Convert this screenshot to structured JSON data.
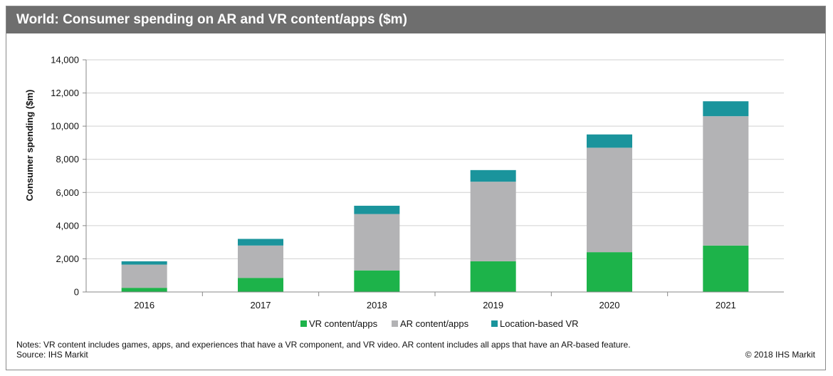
{
  "title": "World: Consumer spending on AR and VR content/apps ($m)",
  "notes": "Notes: VR content includes games, apps, and experiences that have a VR component, and VR video. AR content includes all apps that have an AR-based feature.",
  "source": "Source: IHS Markit",
  "copyright": "© 2018 IHS Markit",
  "chart_data": {
    "type": "bar",
    "stacked": true,
    "title": "World: Consumer spending on AR and VR content/apps ($m)",
    "xlabel": "",
    "ylabel": "Consumer spending ($m)",
    "ylim": [
      0,
      14000
    ],
    "yticks": [
      0,
      2000,
      4000,
      6000,
      8000,
      10000,
      12000,
      14000
    ],
    "ytick_labels": [
      "0",
      "2,000",
      "4,000",
      "6,000",
      "8,000",
      "10,000",
      "12,000",
      "14,000"
    ],
    "grid": true,
    "legend_position": "bottom",
    "categories": [
      "2016",
      "2017",
      "2018",
      "2019",
      "2020",
      "2021"
    ],
    "series": [
      {
        "name": "VR content/apps",
        "color": "#1db34a",
        "values": [
          250,
          850,
          1300,
          1850,
          2400,
          2800
        ]
      },
      {
        "name": "AR content/apps",
        "color": "#b3b3b5",
        "values": [
          1400,
          1950,
          3400,
          4800,
          6300,
          7800
        ]
      },
      {
        "name": "Location-based VR",
        "color": "#1a949c",
        "values": [
          200,
          400,
          500,
          700,
          800,
          900
        ]
      }
    ]
  }
}
